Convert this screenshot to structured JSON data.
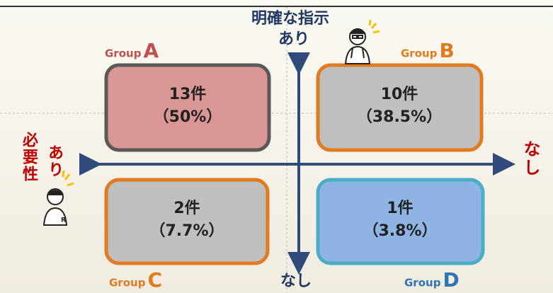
{
  "axes": {
    "top_title": "明確な指示",
    "top": "あり",
    "bottom": "なし",
    "right": "なし",
    "left_title": "必要性",
    "left": "あり"
  },
  "groups": [
    {
      "prefix": "Group",
      "letter": "A",
      "count": "13件",
      "percent": "（50%）"
    },
    {
      "prefix": "Group",
      "letter": "B",
      "count": "10件",
      "percent": "（38.5%）"
    },
    {
      "prefix": "Group",
      "letter": "C",
      "count": "2件",
      "percent": "（7.7%）"
    },
    {
      "prefix": "Group",
      "letter": "D",
      "count": "1件",
      "percent": "（3.8%）"
    }
  ]
}
